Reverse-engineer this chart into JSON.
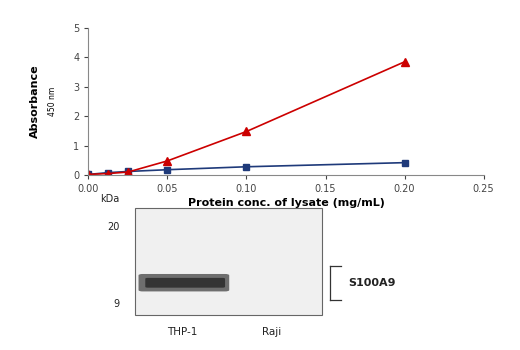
{
  "raji_x": [
    0.0,
    0.0125,
    0.025,
    0.05,
    0.1,
    0.2
  ],
  "raji_y": [
    0.02,
    0.08,
    0.12,
    0.18,
    0.28,
    0.42
  ],
  "thp1_x": [
    0.0,
    0.0125,
    0.025,
    0.05,
    0.1,
    0.2
  ],
  "thp1_y": [
    0.02,
    0.05,
    0.1,
    0.48,
    1.48,
    3.85
  ],
  "raji_color": "#1f3a7a",
  "thp1_color": "#cc0000",
  "xlabel": "Protein conc. of lysate (mg/mL)",
  "xlim": [
    0.0,
    0.25
  ],
  "ylim": [
    0.0,
    5.0
  ],
  "xticks": [
    0.0,
    0.05,
    0.1,
    0.15,
    0.2,
    0.25
  ],
  "yticks": [
    0,
    1,
    2,
    3,
    4,
    5
  ],
  "legend_raji": "Raji",
  "legend_thp1": "THP-1",
  "wb_kda_label": "kDa",
  "wb_band_label": "S100A9",
  "wb_marker_20": "20",
  "wb_marker_9": "9",
  "wb_lane1_label": "THP-1",
  "wb_lane2_label": "Raji",
  "bg_color": "#ffffff"
}
